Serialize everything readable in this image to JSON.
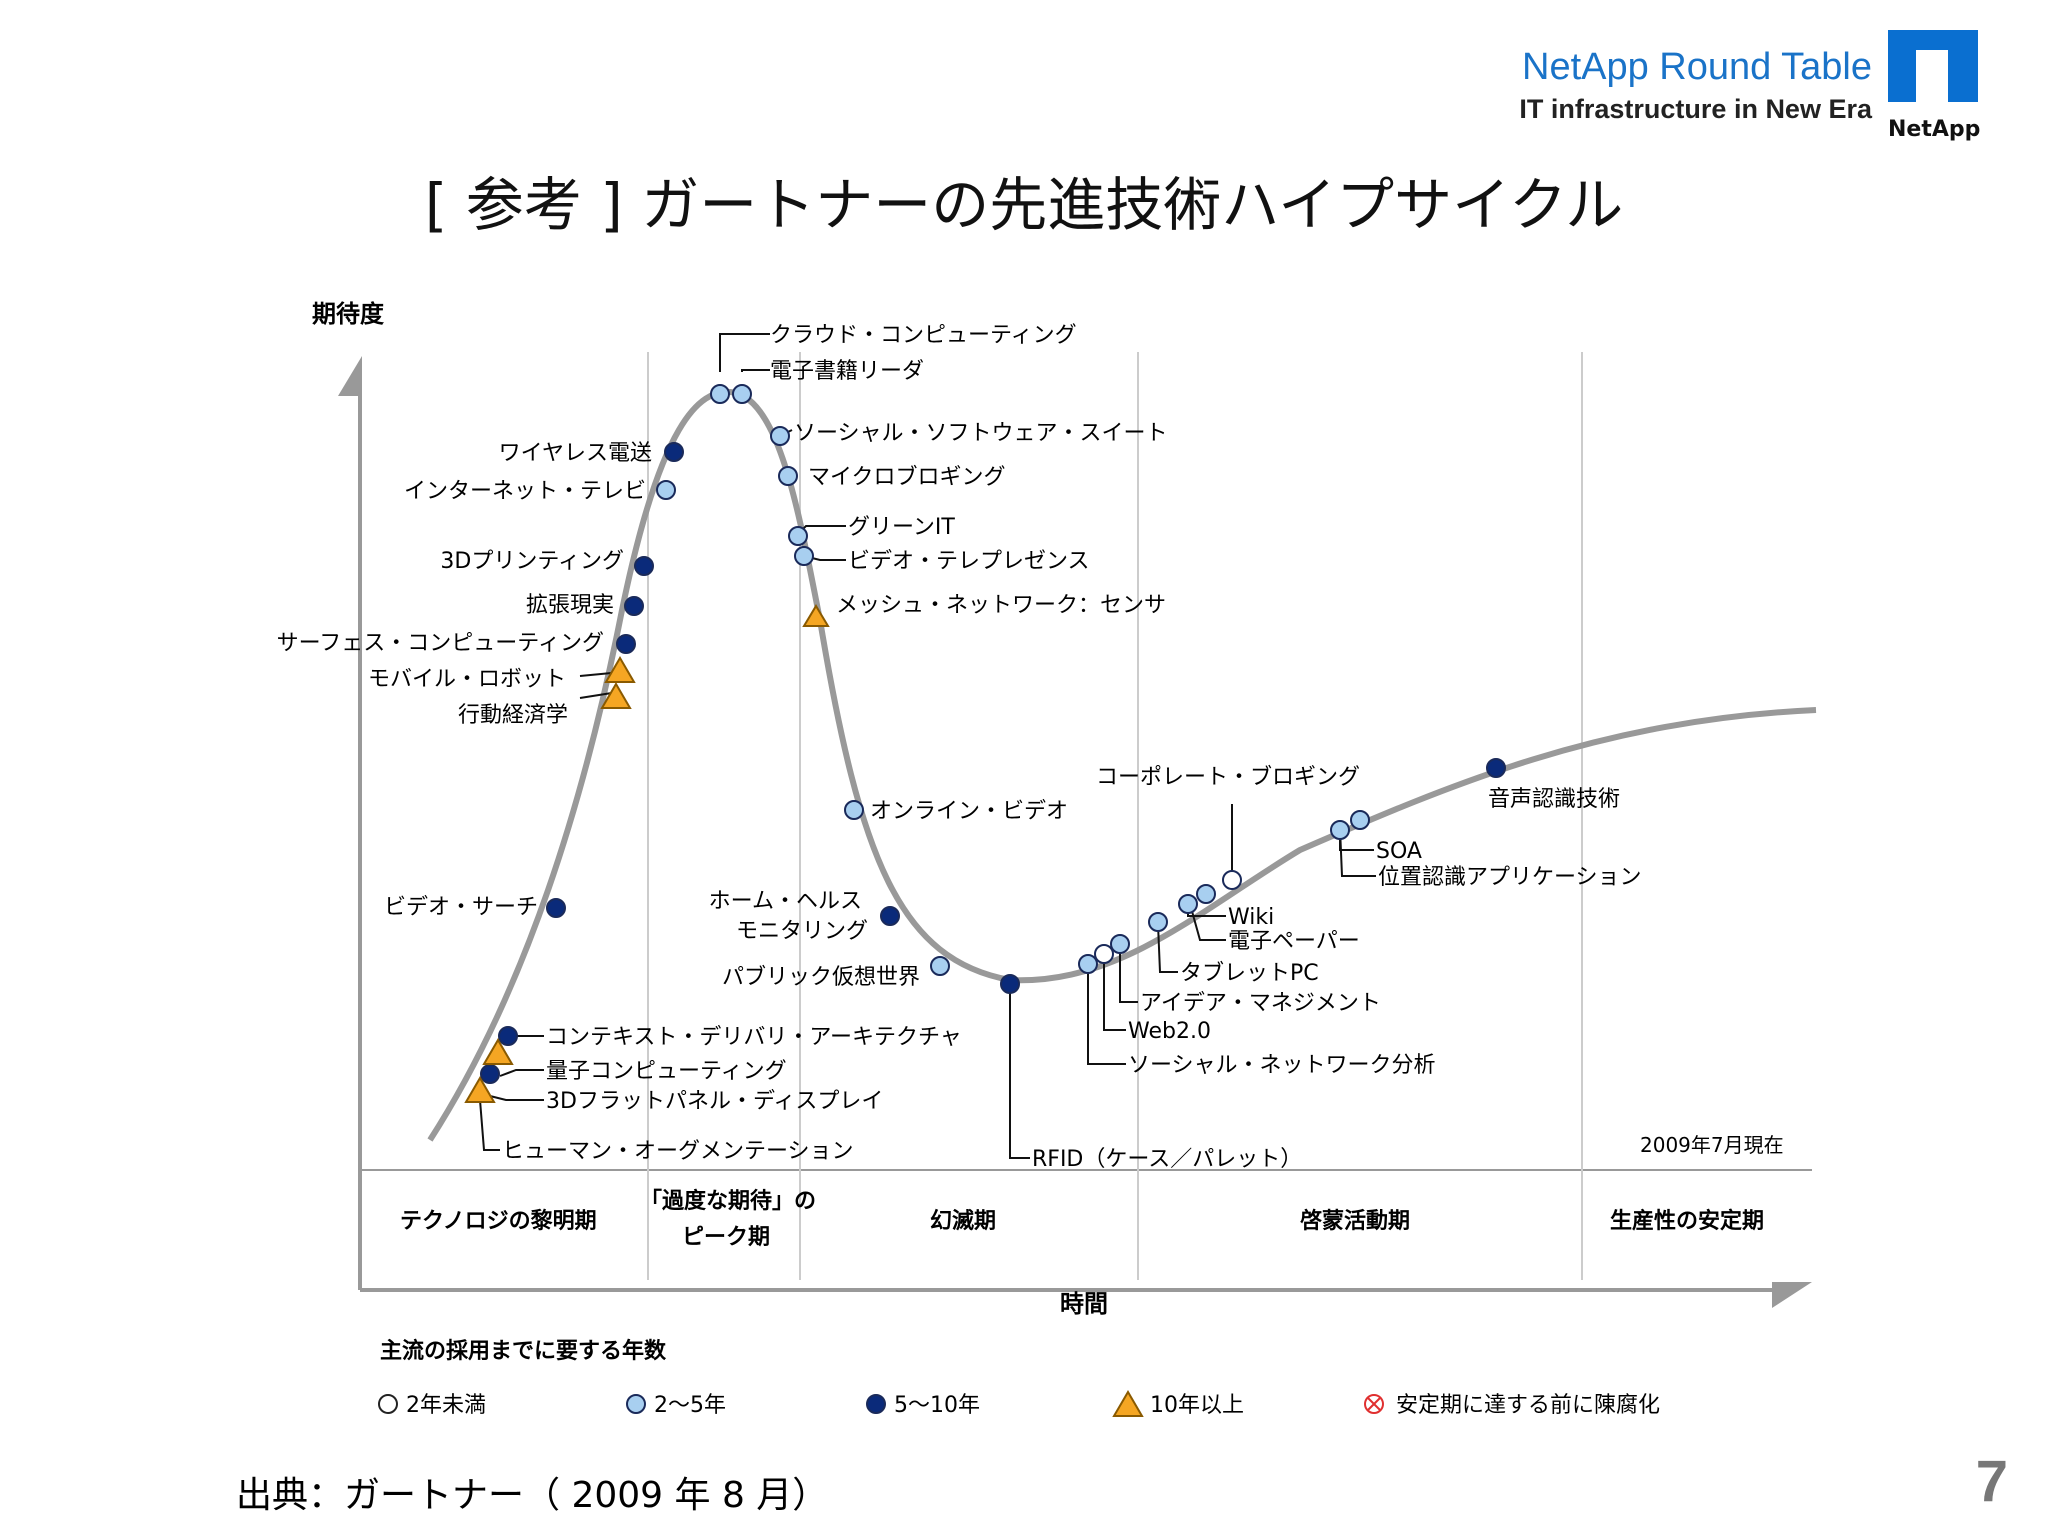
{
  "header": {
    "brand_title": "NetApp Round Table",
    "brand_subtitle": "IT infrastructure in New Era",
    "logo_text": "NetApp"
  },
  "slide": {
    "title": "[ 参考 ] ガートナーの先進技術ハイプサイクル",
    "source": "出典：ガートナー（ 2009 年 8 月）",
    "page_number": "7"
  },
  "chart": {
    "y_axis_label": "期待度",
    "x_axis_label": "時間",
    "date_note": "2009年7月現在",
    "phases": [
      {
        "lines": [
          "テクノロジの黎明期"
        ]
      },
      {
        "lines": [
          "「過度な期待」の",
          "ピーク期"
        ]
      },
      {
        "lines": [
          "幻滅期"
        ]
      },
      {
        "lines": [
          "啓蒙活動期"
        ]
      },
      {
        "lines": [
          "生産性の安定期"
        ]
      }
    ],
    "legend_title": "主流の採用までに要する年数",
    "legend": [
      {
        "label": "2年未満",
        "marker": "open-circle",
        "color": "#ffffff"
      },
      {
        "label": "2〜5年",
        "marker": "light-circle",
        "color": "#a8cff0"
      },
      {
        "label": "5〜10年",
        "marker": "dark-circle",
        "color": "#0a2a7a"
      },
      {
        "label": "10年以上",
        "marker": "triangle",
        "color": "#f5a623"
      },
      {
        "label": "安定期に達する前に陳腐化",
        "marker": "crossed-circle",
        "color": "#e03030"
      }
    ],
    "technologies": [
      {
        "label": "クラウド・コンピューティング",
        "marker": "light-circle"
      },
      {
        "label": "電子書籍リーダ",
        "marker": "light-circle"
      },
      {
        "label": "ソーシャル・ソフトウェア・スイート",
        "marker": "light-circle"
      },
      {
        "label": "マイクロブロギング",
        "marker": "light-circle"
      },
      {
        "label": "グリーンIT",
        "marker": "light-circle"
      },
      {
        "label": "ビデオ・テレプレゼンス",
        "marker": "light-circle"
      },
      {
        "label": "メッシュ・ネットワーク：センサ",
        "marker": "triangle"
      },
      {
        "label": "ワイヤレス電送",
        "marker": "dark-circle"
      },
      {
        "label": "インターネット・テレビ",
        "marker": "light-circle"
      },
      {
        "label": "3Dプリンティング",
        "marker": "dark-circle"
      },
      {
        "label": "拡張現実",
        "marker": "dark-circle"
      },
      {
        "label": "サーフェス・コンピューティング",
        "marker": "dark-circle"
      },
      {
        "label": "モバイル・ロボット",
        "marker": "triangle"
      },
      {
        "label": "行動経済学",
        "marker": "triangle"
      },
      {
        "label": "ビデオ・サーチ",
        "marker": "dark-circle"
      },
      {
        "label": "コンテキスト・デリバリ・アーキテクチャ",
        "marker": "dark-circle"
      },
      {
        "label": "量子コンピューティング",
        "marker": "triangle"
      },
      {
        "label": "3Dフラットパネル・ディスプレイ",
        "marker": "dark-circle"
      },
      {
        "label": "ヒューマン・オーグメンテーション",
        "marker": "triangle"
      },
      {
        "label": "オンライン・ビデオ",
        "marker": "light-circle"
      },
      {
        "label": "ホーム・ヘルス",
        "marker": "dark-circle"
      },
      {
        "label": "モニタリング",
        "marker": "none"
      },
      {
        "label": "パブリック仮想世界",
        "marker": "light-circle"
      },
      {
        "label": "RFID（ケース／パレット）",
        "marker": "dark-circle"
      },
      {
        "label": "コーポレート・ブロギング",
        "marker": "open-circle"
      },
      {
        "label": "Wiki",
        "marker": "light-circle"
      },
      {
        "label": "電子ペーパー",
        "marker": "light-circle"
      },
      {
        "label": "タブレットPC",
        "marker": "light-circle"
      },
      {
        "label": "アイデア・マネジメント",
        "marker": "light-circle"
      },
      {
        "label": "Web2.0",
        "marker": "open-circle"
      },
      {
        "label": "ソーシャル・ネットワーク分析",
        "marker": "light-circle"
      },
      {
        "label": "SOA",
        "marker": "light-circle"
      },
      {
        "label": "位置認識アプリケーション",
        "marker": "light-circle"
      },
      {
        "label": "音声認識技術",
        "marker": "dark-circle"
      }
    ]
  }
}
